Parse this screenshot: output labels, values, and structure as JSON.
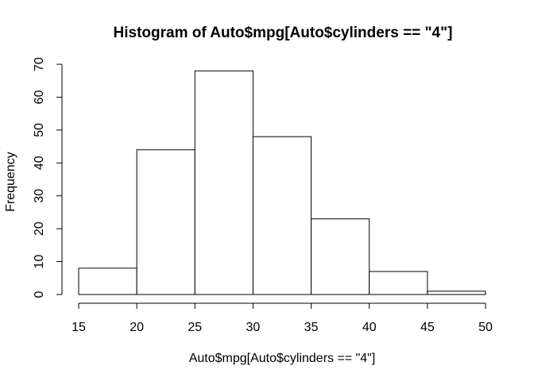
{
  "chart_data": {
    "type": "bar",
    "title": "Histogram of Auto$mpg[Auto$cylinders == \"4\"]",
    "xlabel": "Auto$mpg[Auto$cylinders == \"4\"]",
    "ylabel": "Frequency",
    "bins": [
      {
        "from": 15,
        "to": 20,
        "count": 8
      },
      {
        "from": 20,
        "to": 25,
        "count": 44
      },
      {
        "from": 25,
        "to": 30,
        "count": 68
      },
      {
        "from": 30,
        "to": 35,
        "count": 48
      },
      {
        "from": 35,
        "to": 40,
        "count": 23
      },
      {
        "from": 40,
        "to": 45,
        "count": 7
      },
      {
        "from": 45,
        "to": 50,
        "count": 1
      }
    ],
    "x_ticks": [
      15,
      20,
      25,
      30,
      35,
      40,
      45,
      50
    ],
    "y_ticks": [
      0,
      10,
      20,
      30,
      40,
      50,
      60,
      70
    ],
    "xlim": [
      15,
      50
    ],
    "ylim": [
      0,
      70
    ],
    "grid": false,
    "legend": false,
    "colors": {
      "bar_fill": "#ffffff",
      "bar_stroke": "#000000",
      "axis": "#000000",
      "background": "#ffffff"
    }
  }
}
